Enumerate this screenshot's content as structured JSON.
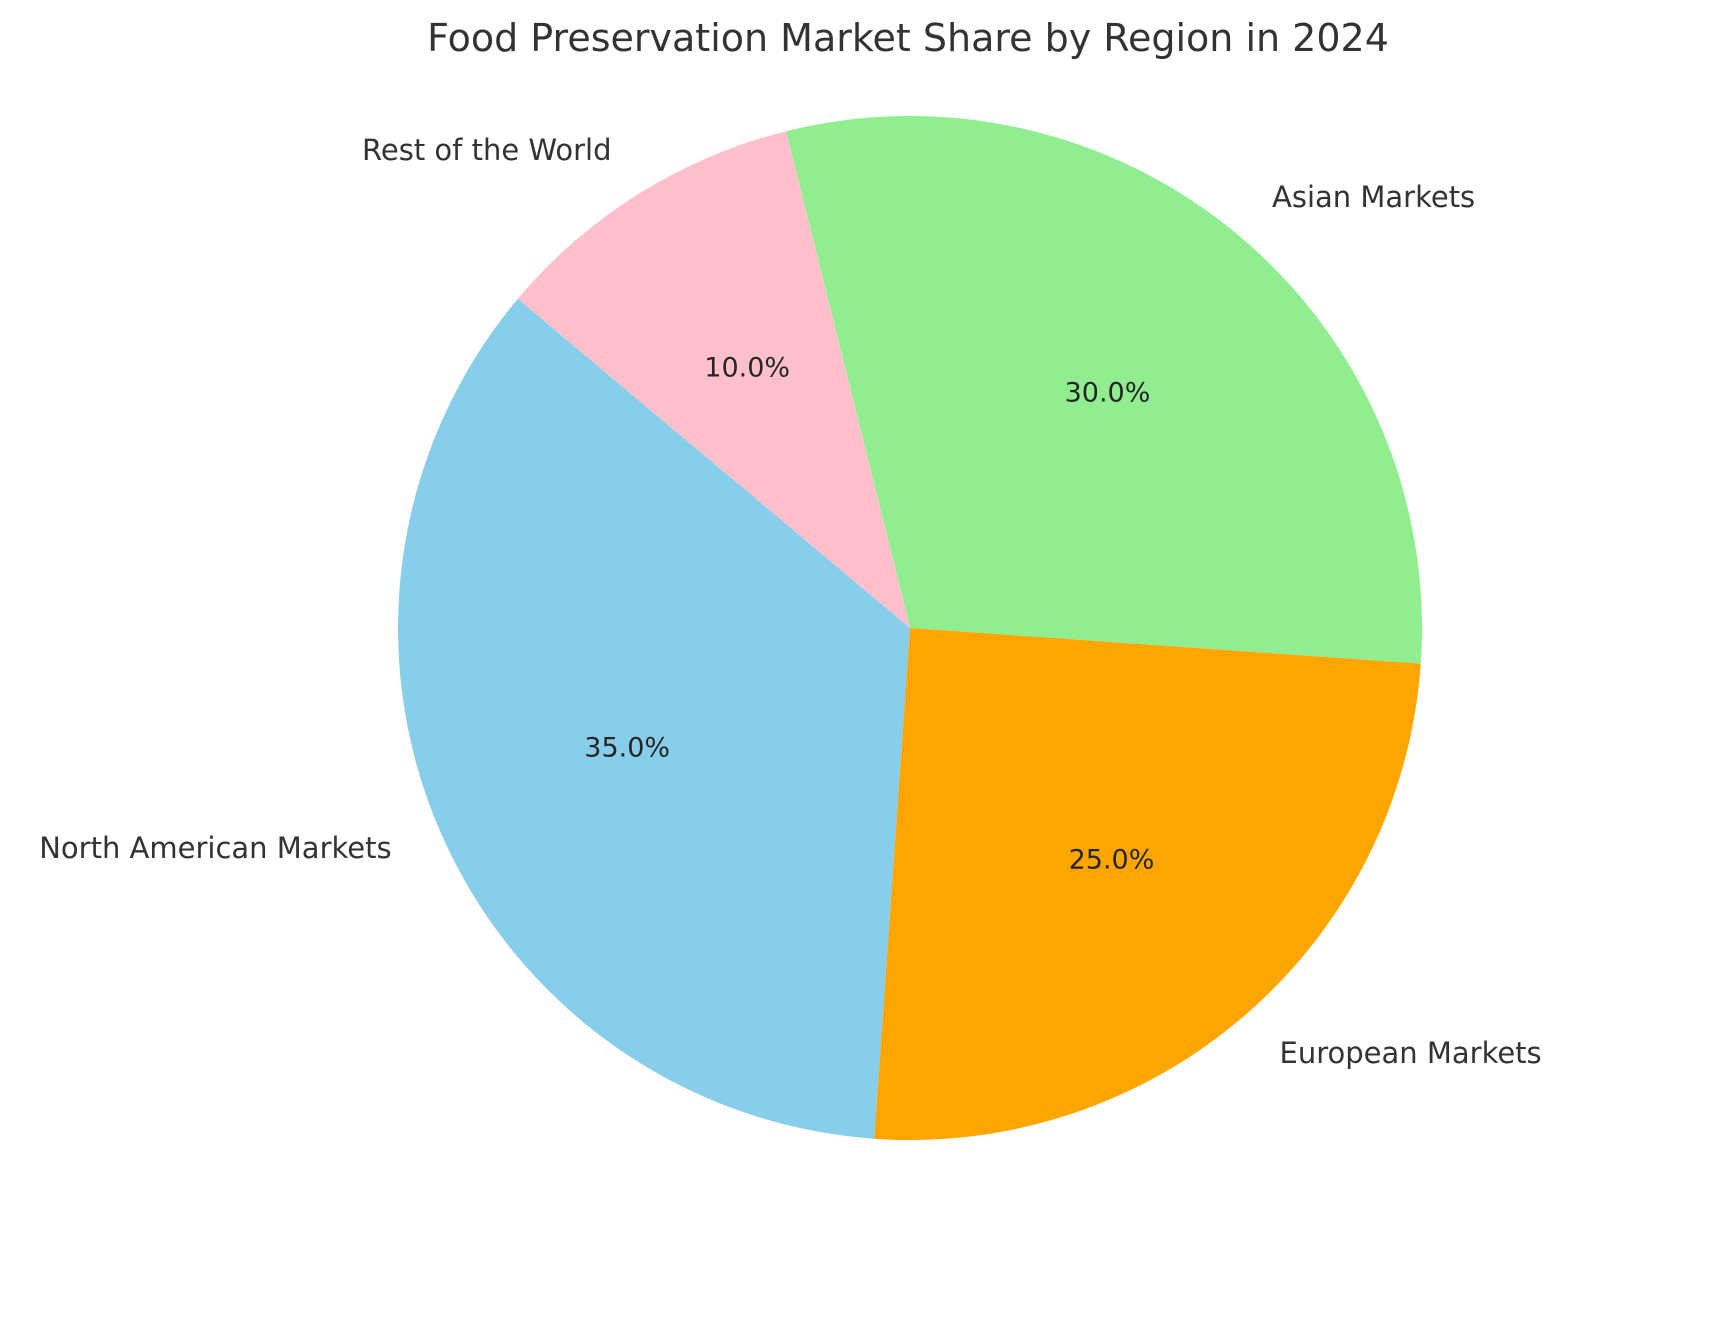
{
  "chart_data": {
    "type": "pie",
    "title": "Food Preservation Market Share by Region in 2024",
    "categories": [
      "Asian Markets",
      "Rest of the World",
      "North American Markets",
      "European Markets"
    ],
    "values": [
      30.0,
      10.0,
      35.0,
      25.0
    ],
    "slices": [
      {
        "label": "Asian Markets",
        "value": 30.0,
        "pct_label": "30.0%",
        "color": "#90EE90"
      },
      {
        "label": "Rest of the World",
        "value": 10.0,
        "pct_label": "10.0%",
        "color": "#FFC0CB"
      },
      {
        "label": "North American Markets",
        "value": 35.0,
        "pct_label": "35.0%",
        "color": "#87CEEB"
      },
      {
        "label": "European Markets",
        "value": 25.0,
        "pct_label": "25.0%",
        "color": "#FFA500"
      }
    ],
    "start_angle_deg": -4,
    "direction": "counterclockwise",
    "legend": "none",
    "label_distance": 1.1,
    "pct_distance": 0.6
  }
}
